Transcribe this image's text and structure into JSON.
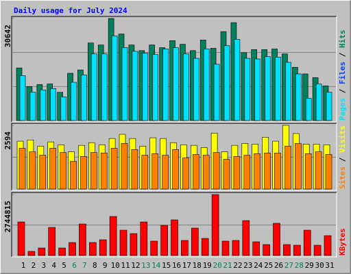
{
  "chart_data": [
    {
      "type": "bar",
      "title": "Daily usage for July 2024",
      "series": [
        {
          "name": "Hits",
          "color": "#00805C",
          "values": [
            15800,
            10200,
            10800,
            11000,
            8500,
            14200,
            15200,
            23300,
            22700,
            30642,
            26000,
            22700,
            21000,
            22700,
            21900,
            24000,
            22900,
            21000,
            24200,
            21700,
            26700,
            29400,
            20400,
            21300,
            21300,
            21500,
            20000,
            16000,
            14000,
            12900,
            10400
          ]
        },
        {
          "name": "Pages",
          "color": "#00E0FF",
          "values": [
            13500,
            8500,
            9200,
            9600,
            7100,
            11500,
            13700,
            20000,
            20000,
            25400,
            21900,
            20800,
            20200,
            19800,
            21500,
            21900,
            20000,
            18700,
            21500,
            16900,
            22500,
            24400,
            18700,
            18500,
            19200,
            19000,
            17500,
            14000,
            6700,
            11000,
            8500
          ]
        }
      ],
      "legend_only": [
        {
          "name": "Files",
          "color": "#0040FF"
        }
      ],
      "legend_separator": " / ",
      "ylim": [
        0,
        30642
      ],
      "yticks": [
        30642
      ],
      "grid_divisions": 3
    },
    {
      "type": "bar",
      "series": [
        {
          "name": "Visits",
          "color": "#FFFF00",
          "values": [
            1950,
            2000,
            1750,
            1920,
            1800,
            1520,
            1780,
            1890,
            1800,
            2060,
            2230,
            2060,
            1750,
            2090,
            2060,
            1890,
            1800,
            1780,
            1690,
            2280,
            1520,
            1780,
            1860,
            1830,
            2110,
            1950,
            2594,
            2260,
            1830,
            1830,
            1800
          ]
        },
        {
          "name": "Sites",
          "color": "#FF8000",
          "values": [
            1660,
            1520,
            1380,
            1660,
            1490,
            1130,
            1330,
            1490,
            1470,
            1660,
            1860,
            1610,
            1380,
            1440,
            1380,
            1610,
            1270,
            1410,
            1380,
            1490,
            1210,
            1330,
            1380,
            1440,
            1470,
            1470,
            1750,
            1860,
            1440,
            1520,
            1410
          ]
        }
      ],
      "legend_separator": " / ",
      "ylim": [
        0,
        2594
      ],
      "yticks": [
        2594
      ],
      "grid_divisions": 2
    },
    {
      "type": "bar",
      "series": [
        {
          "name": "KBytes",
          "color": "#FF0000",
          "values": [
            1511000,
            185000,
            339000,
            1264000,
            339000,
            586000,
            1419000,
            586000,
            709000,
            1758000,
            1141000,
            987000,
            1511000,
            648000,
            1357000,
            1604000,
            678000,
            1234000,
            771000,
            2744815,
            648000,
            678000,
            1573000,
            617000,
            493000,
            1450000,
            493000,
            463000,
            1141000,
            463000,
            894000
          ]
        }
      ],
      "ylim": [
        0,
        2744815
      ],
      "yticks": [
        2744815
      ],
      "grid_divisions": 2,
      "categories": [
        "1",
        "2",
        "3",
        "4",
        "5",
        "6",
        "7",
        "8",
        "9",
        "10",
        "11",
        "12",
        "13",
        "14",
        "15",
        "16",
        "17",
        "18",
        "19",
        "20",
        "21",
        "22",
        "23",
        "24",
        "25",
        "26",
        "27",
        "28",
        "29",
        "30",
        "31"
      ],
      "category_colors": [
        "#000000",
        "#000000",
        "#000000",
        "#000000",
        "#000000",
        "#00805C",
        "#00805C",
        "#000000",
        "#000000",
        "#000000",
        "#000000",
        "#000000",
        "#00805C",
        "#00805C",
        "#000000",
        "#000000",
        "#000000",
        "#000000",
        "#000000",
        "#00805C",
        "#00805C",
        "#000000",
        "#000000",
        "#000000",
        "#000000",
        "#000000",
        "#00805C",
        "#00805C",
        "#000000",
        "#000000",
        "#000000"
      ]
    }
  ]
}
